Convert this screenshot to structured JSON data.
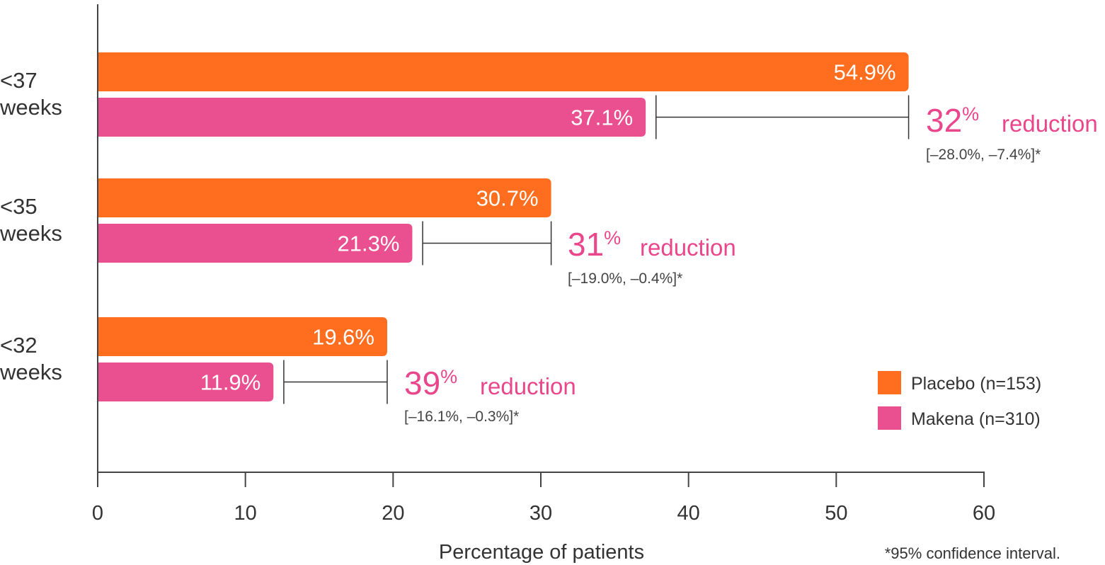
{
  "chart_data": {
    "type": "bar",
    "orientation": "horizontal",
    "xlabel": "Percentage of patients",
    "xlim": [
      0,
      60
    ],
    "x_ticks": [
      "0",
      "10",
      "20",
      "30",
      "40",
      "50",
      "60"
    ],
    "categories": [
      [
        "<37",
        "weeks"
      ],
      [
        "<35",
        "weeks"
      ],
      [
        "<32",
        "weeks"
      ]
    ],
    "series": [
      {
        "name": "Placebo (n=153)",
        "color": "#ff6d1f",
        "values": [
          54.9,
          30.7,
          19.6
        ],
        "labels": [
          "54.9%",
          "30.7%",
          "19.6%"
        ]
      },
      {
        "name": "Makena (n=310)",
        "color": "#ea4f8f",
        "values": [
          37.1,
          21.3,
          11.9
        ],
        "labels": [
          "37.1%",
          "21.3%",
          "11.9%"
        ]
      }
    ],
    "reductions": [
      {
        "number": "32",
        "percent": "%",
        "word": "reduction",
        "ci": "[–28.0%, –7.4%]*",
        "from": 37.8,
        "to": 54.9
      },
      {
        "number": "31",
        "percent": "%",
        "word": "reduction",
        "ci": "[–19.0%, –0.4%]*",
        "from": 22.0,
        "to": 30.7
      },
      {
        "number": "39",
        "percent": "%",
        "word": "reduction",
        "ci": "[–16.1%, –0.3%]*",
        "from": 12.6,
        "to": 19.6
      }
    ],
    "footnote": "*95% confidence interval.",
    "legend_position": "bottom-right",
    "grid": false,
    "axis_color": "#444444",
    "reduction_color": "#e9468c"
  }
}
